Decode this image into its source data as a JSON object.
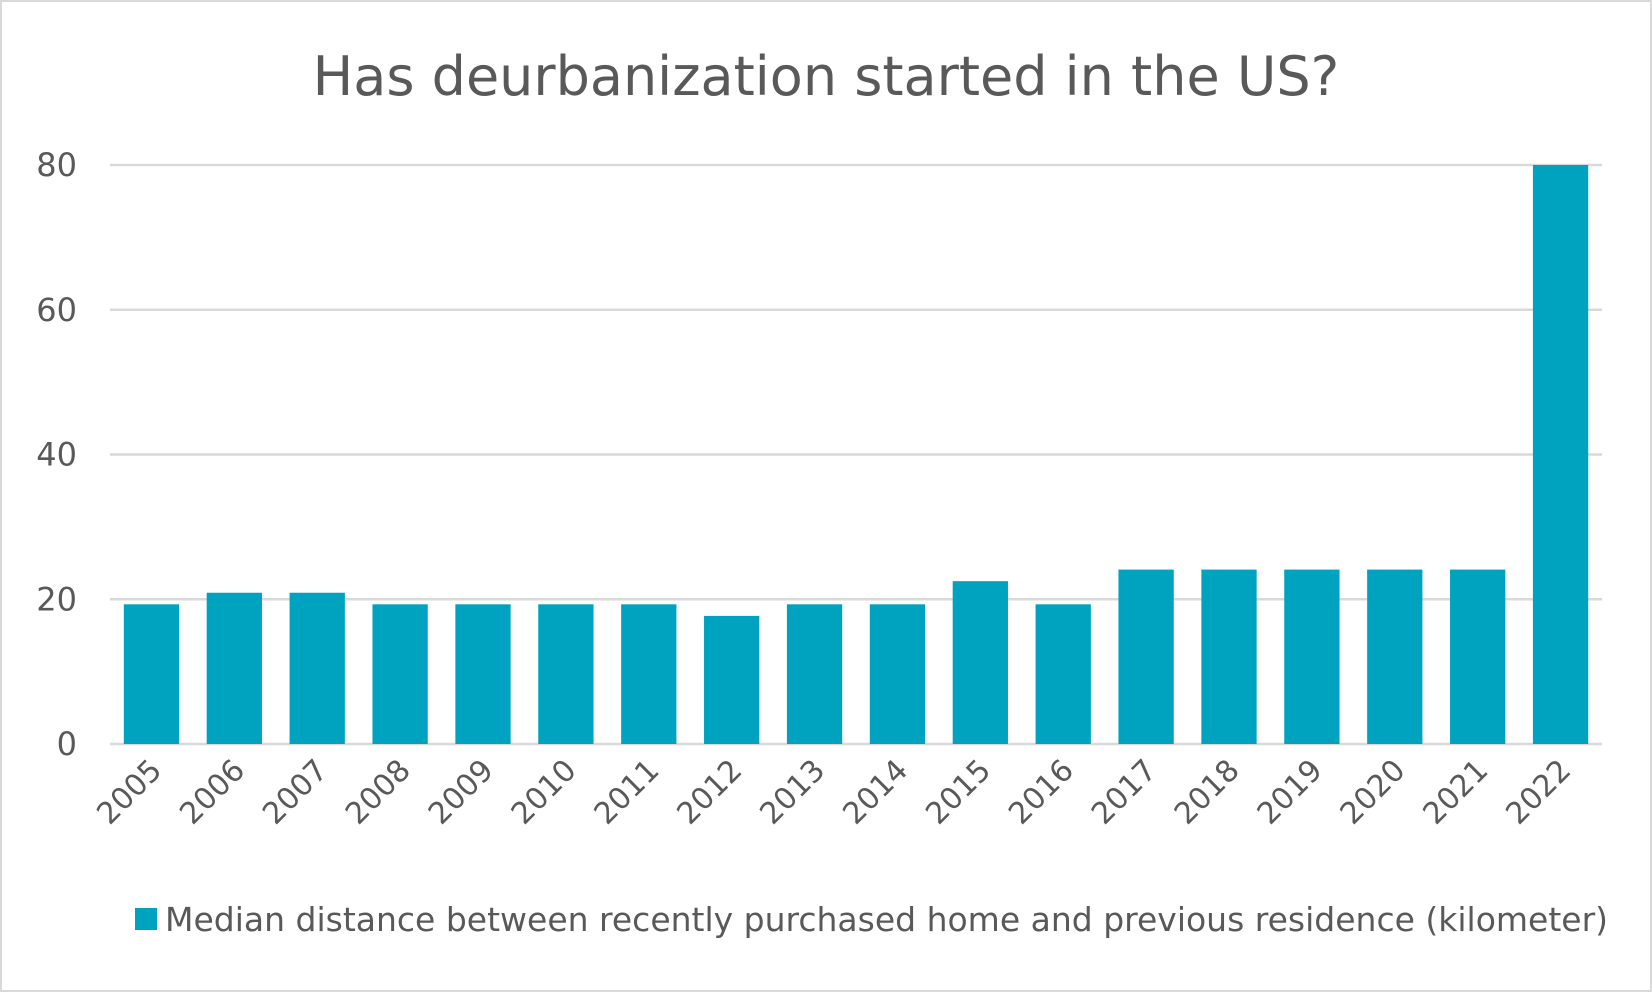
{
  "chart_data": {
    "type": "bar",
    "title": "Has deurbanization started in the US?",
    "xlabel": "",
    "ylabel": "",
    "ylim": [
      0,
      80
    ],
    "yticks": [
      0,
      20,
      40,
      60,
      80
    ],
    "grid": true,
    "legend_position": "bottom",
    "categories": [
      "2005",
      "2006",
      "2007",
      "2008",
      "2009",
      "2010",
      "2011",
      "2012",
      "2013",
      "2014",
      "2015",
      "2016",
      "2017",
      "2018",
      "2019",
      "2020",
      "2021",
      "2022"
    ],
    "series": [
      {
        "name": "Median distance between recently purchased home and previous residence (kilometer)",
        "color": "#00A3BF",
        "values": [
          19.3,
          20.9,
          20.9,
          19.3,
          19.3,
          19.3,
          19.3,
          17.7,
          19.3,
          19.3,
          22.5,
          19.3,
          24.1,
          24.1,
          24.1,
          24.1,
          24.1,
          80.0
        ]
      }
    ]
  }
}
